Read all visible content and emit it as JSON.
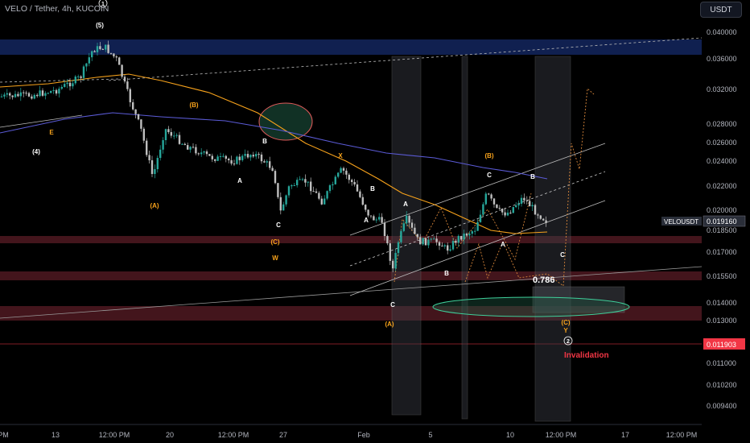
{
  "header": {
    "title": "VELO / Tether, 4h, KUCOIN",
    "currency_button": "USDT"
  },
  "chart_data": {
    "type": "candlestick",
    "symbol": "VELOUSDT",
    "last_price": "0.019160",
    "invalidation_price": "0.011903",
    "invalidation_label": "Invalidation",
    "fib_label": "0.786",
    "ylim": [
      0.0084,
      0.0415
    ],
    "y_ticks": [
      "0.040000",
      "0.036000",
      "0.032000",
      "0.028000",
      "0.026000",
      "0.024000",
      "0.022000",
      "0.020000",
      "0.018500",
      "0.017000",
      "0.015500",
      "0.014000",
      "0.013000",
      "0.011000",
      "0.010200",
      "0.009400"
    ],
    "x_ticks": [
      "PM",
      "13",
      "12:00 PM",
      "20",
      "12:00 PM",
      "27",
      "Feb",
      "5",
      "10",
      "12:00 PM",
      "17",
      "12:00 PM"
    ],
    "wave_labels": [
      {
        "t": "(5)",
        "c": "w"
      },
      {
        "t": "1",
        "c": "w"
      },
      {
        "t": "(4)",
        "c": "w"
      },
      {
        "t": "E",
        "c": "o"
      },
      {
        "t": "(B)",
        "c": "o"
      },
      {
        "t": "(A)",
        "c": "o"
      },
      {
        "t": "B",
        "c": "w"
      },
      {
        "t": "A",
        "c": "w"
      },
      {
        "t": "C",
        "c": "w"
      },
      {
        "t": "X",
        "c": "o"
      },
      {
        "t": "(C)",
        "c": "o"
      },
      {
        "t": "W",
        "c": "o"
      },
      {
        "t": "B",
        "c": "w"
      },
      {
        "t": "A",
        "c": "w"
      },
      {
        "t": "A",
        "c": "w"
      },
      {
        "t": "C",
        "c": "w"
      },
      {
        "t": "(A)",
        "c": "o"
      },
      {
        "t": "B",
        "c": "w"
      },
      {
        "t": "(B)",
        "c": "o"
      },
      {
        "t": "C",
        "c": "w"
      },
      {
        "t": "B",
        "c": "w"
      },
      {
        "t": "A",
        "c": "w"
      },
      {
        "t": "C",
        "c": "w"
      },
      {
        "t": "(C)",
        "c": "o"
      },
      {
        "t": "Y",
        "c": "o"
      },
      {
        "t": "2",
        "c": "w"
      }
    ],
    "colors": {
      "up": "#26a69a",
      "down": "#bfbfbf",
      "orange_ma": "#f7a21b",
      "purple_ma": "#5b5bd6",
      "band_red": "#5a1c26",
      "band_blue": "#13265e",
      "invalid": "#f23645"
    }
  }
}
